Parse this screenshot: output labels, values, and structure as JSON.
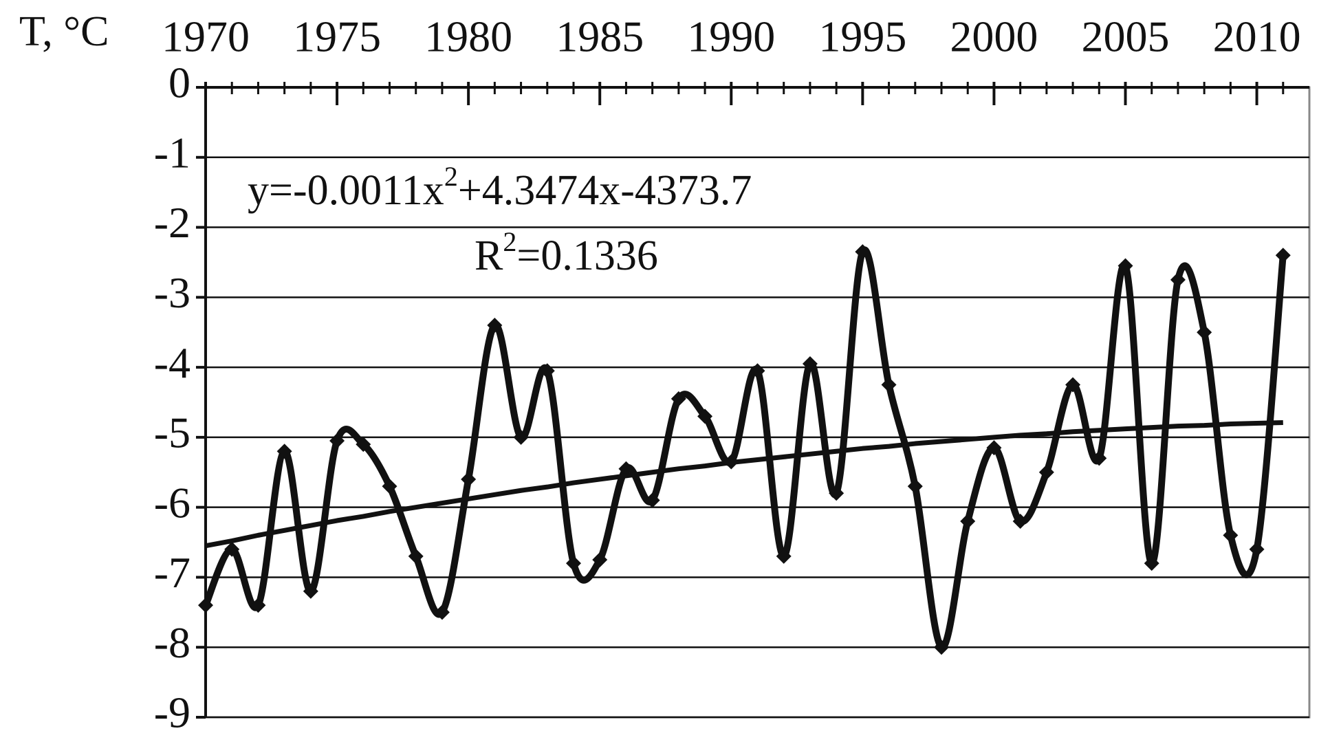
{
  "chart_data": {
    "type": "line",
    "y_label": "T, °C",
    "annotations": [
      [
        "y=-0.0011x",
        "2",
        "+4.3474x-4373.7"
      ],
      [
        "R",
        "2",
        "=0.1336"
      ]
    ],
    "x": [
      1970,
      1971,
      1972,
      1973,
      1974,
      1975,
      1976,
      1977,
      1978,
      1979,
      1980,
      1981,
      1982,
      1983,
      1984,
      1985,
      1986,
      1987,
      1988,
      1989,
      1990,
      1991,
      1992,
      1993,
      1994,
      1995,
      1996,
      1997,
      1998,
      1999,
      2000,
      2001,
      2002,
      2003,
      2004,
      2005,
      2006,
      2007,
      2008,
      2009,
      2010,
      2011
    ],
    "series": [
      {
        "color": "#111111",
        "markers": true,
        "smooth": true,
        "values": [
          -7.4,
          -6.6,
          -7.4,
          -5.2,
          -7.2,
          -5.05,
          -5.1,
          -5.7,
          -6.7,
          -7.5,
          -5.6,
          -3.4,
          -5.0,
          -4.05,
          -6.8,
          -6.75,
          -5.45,
          -5.9,
          -4.45,
          -4.7,
          -5.35,
          -4.05,
          -6.7,
          -3.95,
          -5.8,
          -2.35,
          -4.25,
          -5.7,
          -8.0,
          -6.2,
          -5.15,
          -6.2,
          -5.5,
          -4.25,
          -5.3,
          -2.55,
          -6.8,
          -2.75,
          -3.5,
          -6.4,
          -6.6,
          -2.4
        ]
      },
      {
        "color": "#111111",
        "markers": false,
        "smooth": false,
        "values": [
          -6.55,
          -6.48,
          -6.4,
          -6.33,
          -6.26,
          -6.19,
          -6.13,
          -6.06,
          -6.0,
          -5.94,
          -5.88,
          -5.82,
          -5.76,
          -5.71,
          -5.65,
          -5.6,
          -5.55,
          -5.5,
          -5.45,
          -5.41,
          -5.36,
          -5.32,
          -5.28,
          -5.24,
          -5.2,
          -5.16,
          -5.13,
          -5.09,
          -5.06,
          -5.03,
          -5.0,
          -4.97,
          -4.95,
          -4.92,
          -4.9,
          -4.88,
          -4.86,
          -4.84,
          -4.83,
          -4.81,
          -4.8,
          -4.79
        ]
      }
    ],
    "xlim": [
      1970,
      2012
    ],
    "xticks": [
      1970,
      1975,
      1980,
      1985,
      1990,
      1995,
      2000,
      2005,
      2010
    ],
    "ylim": [
      -9,
      0
    ],
    "yticks": [
      0,
      -1,
      -2,
      -3,
      -4,
      -5,
      -6,
      -7,
      -8,
      -9
    ],
    "grid": true,
    "x_axis_position": "top"
  }
}
